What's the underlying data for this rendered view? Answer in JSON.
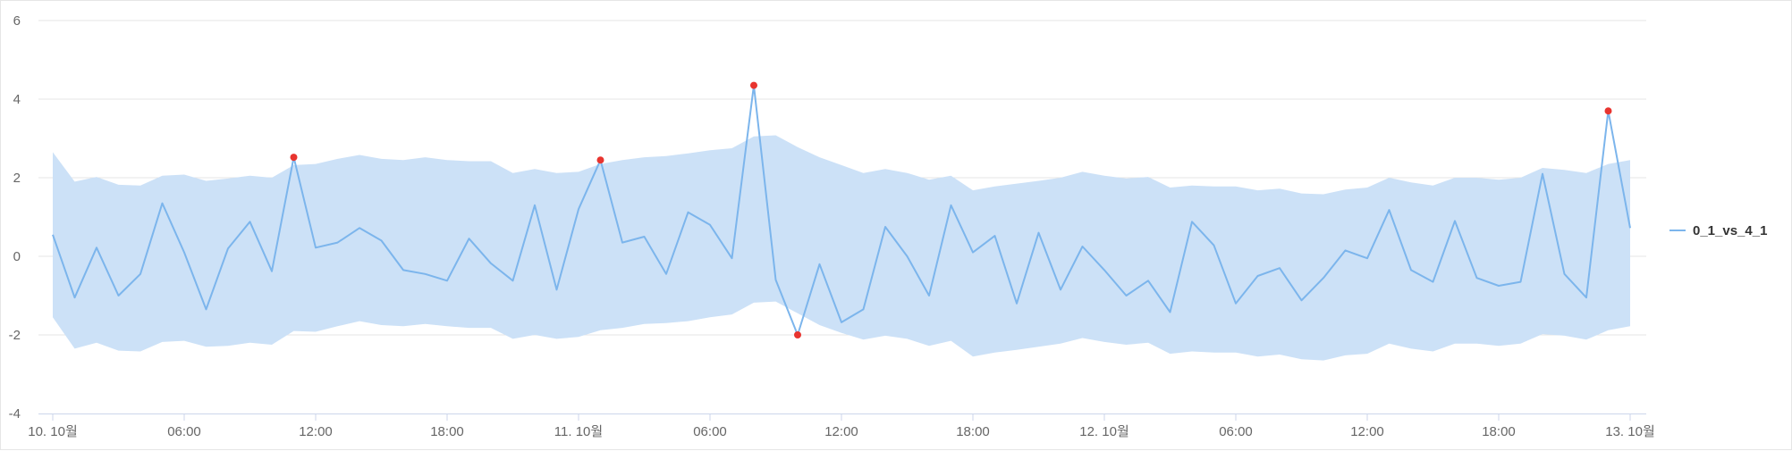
{
  "chart_data": {
    "type": "line",
    "title": "",
    "xlabel": "",
    "ylabel": "",
    "ylim": [
      -4,
      6
    ],
    "y_ticks": [
      "6",
      "4",
      "2",
      "0",
      "-2",
      "-4"
    ],
    "x_ticks": [
      "10. 10월",
      "06:00",
      "12:00",
      "18:00",
      "11. 10월",
      "06:00",
      "12:00",
      "18:00",
      "12. 10월",
      "06:00",
      "12:00",
      "18:00",
      "13. 10월"
    ],
    "x_unit": "hours since 10. 10월 00:00",
    "grid": true,
    "legend_position": "right",
    "colors": {
      "line": "#7cb5ec",
      "band": "#cce1f7",
      "anomaly": "#e8342f",
      "grid": "#e6e6e6",
      "axis": "#ccd6eb"
    },
    "series": [
      {
        "name": "0_1_vs_4_1",
        "x": [
          0,
          1,
          2,
          3,
          4,
          5,
          6,
          7,
          8,
          9,
          10,
          11,
          12,
          13,
          14,
          15,
          16,
          17,
          18,
          19,
          20,
          21,
          22,
          23,
          24,
          25,
          26,
          27,
          28,
          29,
          30,
          31,
          32,
          33,
          34,
          35,
          36,
          37,
          38,
          39,
          40,
          41,
          42,
          43,
          44,
          45,
          46,
          47,
          48,
          49,
          50,
          51,
          52,
          53,
          54,
          55,
          56,
          57,
          58,
          59,
          60,
          61,
          62,
          63,
          64,
          65,
          66,
          67,
          68,
          69,
          70,
          71,
          72
        ],
        "values": [
          0.55,
          -1.05,
          0.22,
          -1.0,
          -0.45,
          1.35,
          0.1,
          -1.35,
          0.2,
          0.88,
          -0.38,
          2.52,
          0.22,
          0.35,
          0.72,
          0.4,
          -0.35,
          -0.45,
          -0.62,
          0.45,
          -0.18,
          -0.62,
          1.3,
          -0.85,
          1.2,
          2.45,
          0.35,
          0.5,
          -0.45,
          1.12,
          0.8,
          -0.05,
          4.35,
          -0.6,
          -2.0,
          -0.2,
          -1.68,
          -1.35,
          0.75,
          0.0,
          -1.0,
          1.3,
          0.1,
          0.52,
          -1.2,
          0.6,
          -0.85,
          0.25,
          -0.35,
          -1.0,
          -0.62,
          -1.42,
          0.88,
          0.28,
          -1.2,
          -0.5,
          -0.3,
          -1.12,
          -0.55,
          0.15,
          -0.05,
          1.18,
          -0.35,
          -0.65,
          0.9,
          -0.55,
          -0.75,
          -0.65,
          2.1,
          -0.45,
          -1.05,
          3.7,
          0.72
        ],
        "band_upper": [
          2.65,
          1.9,
          2.02,
          1.82,
          1.8,
          2.05,
          2.08,
          1.92,
          1.98,
          2.05,
          2.0,
          2.32,
          2.35,
          2.48,
          2.58,
          2.48,
          2.45,
          2.52,
          2.45,
          2.42,
          2.42,
          2.12,
          2.22,
          2.12,
          2.15,
          2.35,
          2.45,
          2.52,
          2.55,
          2.62,
          2.7,
          2.75,
          3.05,
          3.08,
          2.78,
          2.52,
          2.32,
          2.12,
          2.22,
          2.12,
          1.95,
          2.05,
          1.68,
          1.78,
          1.85,
          1.92,
          2.0,
          2.15,
          2.05,
          1.98,
          2.02,
          1.75,
          1.8,
          1.78,
          1.78,
          1.68,
          1.72,
          1.6,
          1.58,
          1.7,
          1.75,
          2.0,
          1.88,
          1.8,
          2.0,
          2.0,
          1.95,
          2.0,
          2.25,
          2.2,
          2.12,
          2.35,
          2.45
        ],
        "band_lower": [
          -1.55,
          -2.35,
          -2.2,
          -2.4,
          -2.42,
          -2.18,
          -2.15,
          -2.3,
          -2.28,
          -2.2,
          -2.25,
          -1.9,
          -1.92,
          -1.78,
          -1.65,
          -1.75,
          -1.78,
          -1.72,
          -1.78,
          -1.82,
          -1.82,
          -2.1,
          -2.0,
          -2.1,
          -2.05,
          -1.88,
          -1.82,
          -1.72,
          -1.7,
          -1.65,
          -1.55,
          -1.48,
          -1.18,
          -1.15,
          -1.45,
          -1.75,
          -1.95,
          -2.12,
          -2.02,
          -2.1,
          -2.28,
          -2.15,
          -2.55,
          -2.45,
          -2.38,
          -2.3,
          -2.22,
          -2.08,
          -2.18,
          -2.25,
          -2.2,
          -2.48,
          -2.42,
          -2.45,
          -2.45,
          -2.55,
          -2.5,
          -2.62,
          -2.65,
          -2.52,
          -2.48,
          -2.22,
          -2.35,
          -2.42,
          -2.22,
          -2.22,
          -2.28,
          -2.22,
          -1.98,
          -2.02,
          -2.12,
          -1.88,
          -1.78
        ],
        "anomalies": [
          {
            "x": 11,
            "y": 2.52
          },
          {
            "x": 25,
            "y": 2.45
          },
          {
            "x": 32,
            "y": 4.35
          },
          {
            "x": 34,
            "y": -2.0
          },
          {
            "x": 71,
            "y": 3.7
          }
        ]
      }
    ]
  }
}
